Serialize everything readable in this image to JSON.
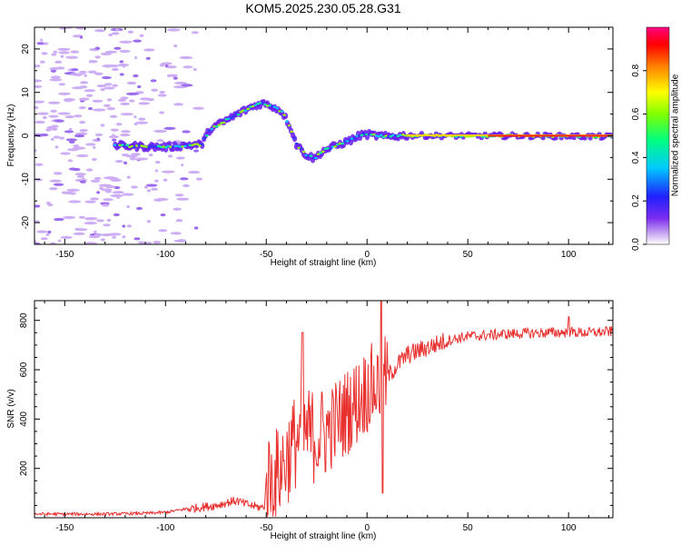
{
  "title": "KOM5.2025.230.05.28.G31",
  "chart_data": [
    {
      "type": "heatmap",
      "title": "KOM5.2025.230.05.28.G31",
      "xlabel": "Height of straight line (km)",
      "ylabel": "Frequency (Hz)",
      "xlim": [
        -165,
        122
      ],
      "ylim": [
        -25,
        25
      ],
      "xticks": [
        -150,
        -100,
        -50,
        0,
        50,
        100
      ],
      "yticks": [
        -20,
        -10,
        0,
        10,
        20
      ],
      "colorbar": {
        "label": "Normalized spectral amplitude",
        "ticks": [
          0.0,
          0.2,
          0.4,
          0.6,
          0.8
        ],
        "range": [
          0,
          1
        ],
        "colormap": [
          "#ffffff",
          "#c8a8f0",
          "#7b2cf0",
          "#2020ff",
          "#00c8ff",
          "#00ff80",
          "#80ff00",
          "#ffff00",
          "#ff8000",
          "#ff0000",
          "#ff0080"
        ]
      },
      "doppler_ridge": {
        "height_km": [
          -125,
          -110,
          -100,
          -90,
          -82,
          -78,
          -72,
          -65,
          -58,
          -52,
          -47,
          -42,
          -38,
          -35,
          -30,
          -26,
          -22,
          -15,
          -8,
          -3,
          0,
          5,
          10,
          20,
          40,
          60,
          80,
          100,
          122
        ],
        "frequency_hz": [
          -2.2,
          -2.5,
          -2.6,
          -2.2,
          -2.0,
          1.5,
          3.0,
          4.8,
          6.5,
          7.5,
          6.8,
          5.5,
          2.0,
          -2.0,
          -4.5,
          -5.2,
          -3.5,
          -2.2,
          -1.0,
          0.2,
          0.3,
          0.0,
          -0.2,
          0.1,
          0.0,
          0.0,
          0.0,
          -0.1,
          -0.2
        ]
      }
    },
    {
      "type": "line",
      "xlabel": "Height of straight line (km)",
      "ylabel": "SNR (v/v)",
      "xlim": [
        -165,
        122
      ],
      "ylim": [
        0,
        880
      ],
      "xticks": [
        -150,
        -100,
        -50,
        0,
        50,
        100
      ],
      "yticks": [
        200,
        400,
        600,
        800
      ],
      "series": [
        {
          "name": "SNR",
          "color": "#e8312f",
          "x": [
            -165,
            -150,
            -130,
            -110,
            -100,
            -90,
            -80,
            -75,
            -70,
            -65,
            -60,
            -55,
            -51,
            -50,
            -45,
            -40,
            -35,
            -30,
            -25,
            -20,
            -15,
            -10,
            -5,
            0,
            5,
            10,
            15,
            20,
            30,
            40,
            50,
            60,
            70,
            80,
            90,
            100,
            110,
            122
          ],
          "values": [
            15,
            15,
            15,
            18,
            22,
            35,
            45,
            50,
            60,
            70,
            55,
            45,
            40,
            150,
            170,
            240,
            320,
            340,
            330,
            350,
            390,
            430,
            470,
            520,
            540,
            570,
            620,
            660,
            690,
            720,
            735,
            740,
            745,
            748,
            750,
            752,
            750,
            755
          ]
        }
      ]
    }
  ]
}
